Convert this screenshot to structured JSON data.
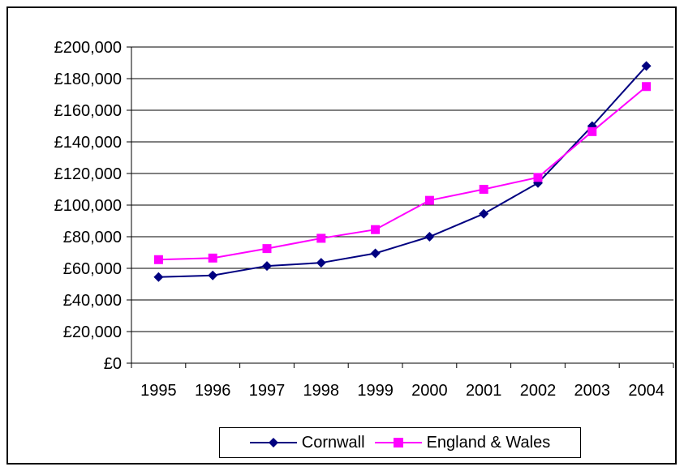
{
  "chart_data": {
    "type": "line",
    "categories": [
      "1995",
      "1996",
      "1997",
      "1998",
      "1999",
      "2000",
      "2001",
      "2002",
      "2003",
      "2004"
    ],
    "series": [
      {
        "name": "Cornwall",
        "color": "#000080",
        "marker": "diamond",
        "values": [
          54500,
          55500,
          61500,
          63500,
          69500,
          80000,
          94500,
          114000,
          150000,
          188000
        ]
      },
      {
        "name": "England & Wales",
        "color": "#ff00ff",
        "marker": "square",
        "values": [
          65500,
          66500,
          72500,
          79000,
          84500,
          103000,
          110000,
          117500,
          146500,
          175000
        ]
      }
    ],
    "ylim": [
      0,
      200000
    ],
    "ytick_labels": [
      "£0",
      "£20,000",
      "£40,000",
      "£60,000",
      "£80,000",
      "£100,000",
      "£120,000",
      "£140,000",
      "£160,000",
      "£180,000",
      "£200,000"
    ],
    "grid": true,
    "legend_position": "bottom"
  }
}
